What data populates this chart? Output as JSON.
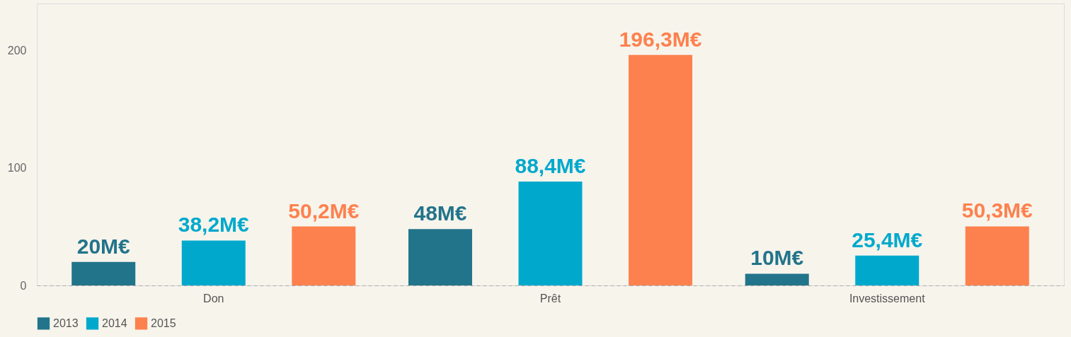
{
  "chart_data": {
    "type": "bar",
    "categories": [
      "Don",
      "Prêt",
      "Investissement"
    ],
    "series": [
      {
        "name": "2013",
        "color": "#22748a",
        "values": [
          20,
          48,
          10
        ],
        "value_labels": [
          "20M€",
          "48M€",
          "10M€"
        ]
      },
      {
        "name": "2014",
        "color": "#00a9cc",
        "values": [
          38.2,
          88.4,
          25.4
        ],
        "value_labels": [
          "38,2M€",
          "88,4M€",
          "25,4M€"
        ]
      },
      {
        "name": "2015",
        "color": "#fd814e",
        "values": [
          50.2,
          196.3,
          50.3
        ],
        "value_labels": [
          "50,2M€",
          "196,3M€",
          "50,3M€"
        ]
      }
    ],
    "ylim": [
      0,
      240
    ],
    "yticks": [
      0,
      100,
      200
    ],
    "grid": false,
    "legend": "bottom"
  }
}
